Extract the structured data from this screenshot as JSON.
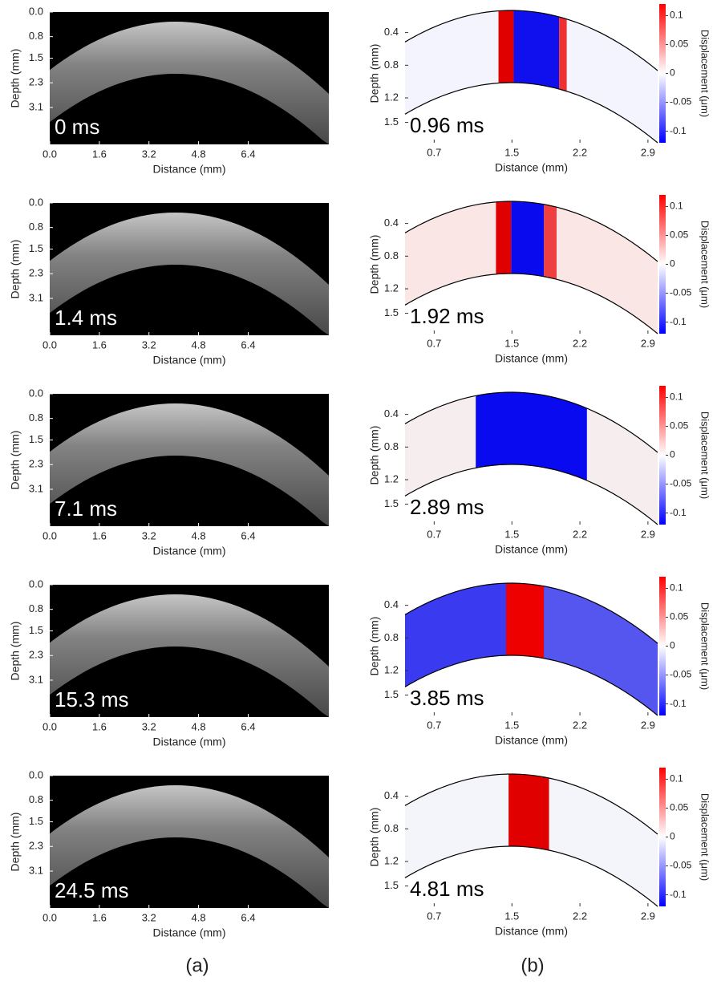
{
  "chart_data": [
    {
      "type": "image",
      "time_label": "0 ms",
      "xlabel": "Distance (mm)",
      "ylabel": "Depth (mm)",
      "xlim": [
        0,
        9
      ],
      "ylim": [
        0,
        4.3
      ],
      "y_inverted": true,
      "xticks": [
        {
          "value": 0,
          "label": "0.0"
        },
        1.6,
        3.2,
        4.8,
        6.4
      ],
      "yticks": [
        {
          "value": 0,
          "label": "0.0"
        },
        0.8,
        1.5,
        2.3,
        3.1
      ]
    },
    {
      "type": "heatmap",
      "time_label": "0.96 ms",
      "xlabel": "Distance (mm)",
      "ylabel": "Depth (mm)",
      "xlim": [
        0.4,
        3.0
      ],
      "ylim": [
        0.05,
        1.75
      ],
      "y_inverted": true,
      "xticks": [
        0.7,
        1.5,
        2.2,
        2.9
      ],
      "yticks": [
        0.4,
        0.8,
        1.2,
        1.5
      ],
      "colorbar": {
        "label": "Displacement (μm)",
        "lim": [
          -0.12,
          0.12
        ],
        "ticks": [
          0.1,
          0.05,
          0,
          -0.05,
          -0.1
        ]
      }
    },
    {
      "type": "image",
      "time_label": "1.4 ms",
      "xlabel": "Distance (mm)",
      "ylabel": "Depth (mm)",
      "xlim": [
        0,
        9
      ],
      "ylim": [
        0,
        4.3
      ],
      "y_inverted": true,
      "xticks": [
        {
          "value": 0,
          "label": "0.0"
        },
        1.6,
        3.2,
        4.8,
        6.4
      ],
      "yticks": [
        {
          "value": 0,
          "label": "0.0"
        },
        0.8,
        1.5,
        2.3,
        3.1
      ]
    },
    {
      "type": "heatmap",
      "time_label": "1.92 ms",
      "xlabel": "Distance (mm)",
      "ylabel": "Depth (mm)",
      "xlim": [
        0.4,
        3.0
      ],
      "ylim": [
        0.05,
        1.75
      ],
      "y_inverted": true,
      "xticks": [
        0.7,
        1.5,
        2.2,
        2.9
      ],
      "yticks": [
        0.4,
        0.8,
        1.2,
        1.5
      ],
      "colorbar": {
        "label": "Displacement (μm)",
        "lim": [
          -0.12,
          0.12
        ],
        "ticks": [
          0.1,
          0.05,
          0,
          -0.05,
          -0.1
        ]
      }
    },
    {
      "type": "image",
      "time_label": "7.1 ms",
      "xlabel": "Distance (mm)",
      "ylabel": "Depth (mm)",
      "xlim": [
        0,
        9
      ],
      "ylim": [
        0,
        4.3
      ],
      "y_inverted": true,
      "xticks": [
        {
          "value": 0,
          "label": "0.0"
        },
        1.6,
        3.2,
        4.8,
        6.4
      ],
      "yticks": [
        {
          "value": 0,
          "label": "0.0"
        },
        0.8,
        1.5,
        2.3,
        3.1
      ]
    },
    {
      "type": "heatmap",
      "time_label": "2.89 ms",
      "xlabel": "Distance (mm)",
      "ylabel": "Depth (mm)",
      "xlim": [
        0.4,
        3.0
      ],
      "ylim": [
        0.05,
        1.75
      ],
      "y_inverted": true,
      "xticks": [
        0.7,
        1.5,
        2.2,
        2.9
      ],
      "yticks": [
        0.4,
        0.8,
        1.2,
        1.5
      ],
      "colorbar": {
        "label": "Displacement (μm)",
        "lim": [
          -0.12,
          0.12
        ],
        "ticks": [
          0.1,
          0.05,
          0,
          -0.05,
          -0.1
        ]
      }
    },
    {
      "type": "image",
      "time_label": "15.3 ms",
      "xlabel": "Distance (mm)",
      "ylabel": "Depth (mm)",
      "xlim": [
        0,
        9
      ],
      "ylim": [
        0,
        4.3
      ],
      "y_inverted": true,
      "xticks": [
        {
          "value": 0,
          "label": "0.0"
        },
        1.6,
        3.2,
        4.8,
        6.4
      ],
      "yticks": [
        {
          "value": 0,
          "label": "0.0"
        },
        0.8,
        1.5,
        2.3,
        3.1
      ]
    },
    {
      "type": "heatmap",
      "time_label": "3.85 ms",
      "xlabel": "Distance (mm)",
      "ylabel": "Depth (mm)",
      "xlim": [
        0.4,
        3.0
      ],
      "ylim": [
        0.05,
        1.75
      ],
      "y_inverted": true,
      "xticks": [
        0.7,
        1.5,
        2.2,
        2.9
      ],
      "yticks": [
        0.4,
        0.8,
        1.2,
        1.5
      ],
      "colorbar": {
        "label": "Displacement (μm)",
        "lim": [
          -0.12,
          0.12
        ],
        "ticks": [
          0.1,
          0.05,
          0,
          -0.05,
          -0.1
        ]
      }
    },
    {
      "type": "image",
      "time_label": "24.5 ms",
      "xlabel": "Distance (mm)",
      "ylabel": "Depth (mm)",
      "xlim": [
        0,
        9
      ],
      "ylim": [
        0,
        4.3
      ],
      "y_inverted": true,
      "xticks": [
        {
          "value": 0,
          "label": "0.0"
        },
        1.6,
        3.2,
        4.8,
        6.4
      ],
      "yticks": [
        {
          "value": 0,
          "label": "0.0"
        },
        0.8,
        1.5,
        2.3,
        3.1
      ]
    },
    {
      "type": "heatmap",
      "time_label": "4.81 ms",
      "xlabel": "Distance (mm)",
      "ylabel": "Depth (mm)",
      "xlim": [
        0.4,
        3.0
      ],
      "ylim": [
        0.05,
        1.75
      ],
      "y_inverted": true,
      "xticks": [
        0.7,
        1.5,
        2.2,
        2.9
      ],
      "yticks": [
        0.4,
        0.8,
        1.2,
        1.5
      ],
      "colorbar": {
        "label": "Displacement (μm)",
        "lim": [
          -0.12,
          0.12
        ],
        "ticks": [
          0.1,
          0.05,
          0,
          -0.05,
          -0.1
        ]
      }
    }
  ],
  "panel_labels": [
    "(a)",
    "(b)"
  ]
}
